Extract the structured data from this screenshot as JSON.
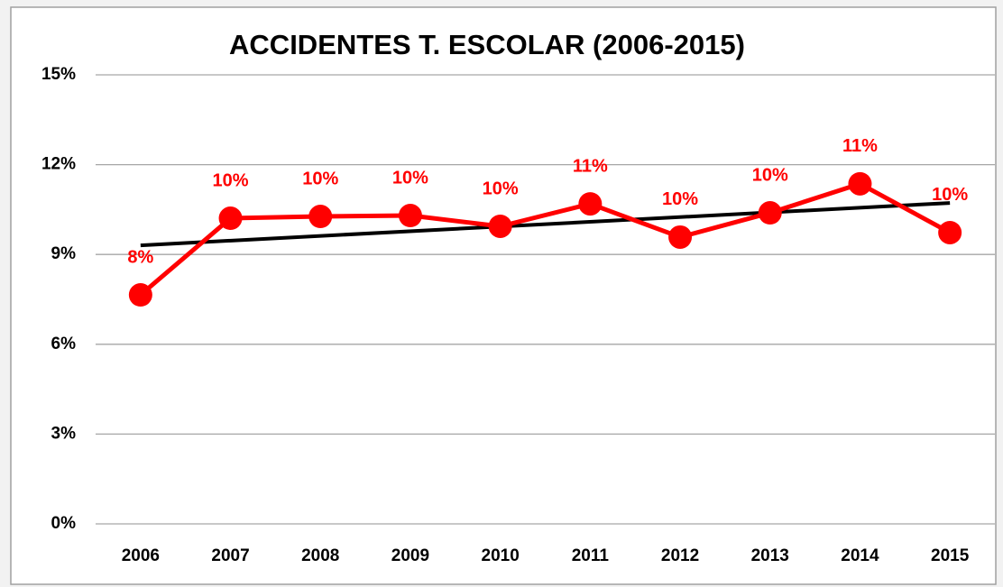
{
  "chart_data": {
    "type": "line",
    "title": "ACCIDENTES T. ESCOLAR (2006-2015)",
    "categories": [
      "2006",
      "2007",
      "2008",
      "2009",
      "2010",
      "2011",
      "2012",
      "2013",
      "2014",
      "2015"
    ],
    "values": [
      7.65,
      10.21,
      10.27,
      10.3,
      9.94,
      10.69,
      9.58,
      10.39,
      11.36,
      9.73
    ],
    "value_labels": [
      "8%",
      "10%",
      "10%",
      "10%",
      "10%",
      "11%",
      "10%",
      "10%",
      "11%",
      "10%"
    ],
    "color": "#ff0000",
    "trendline": "linear",
    "trendline_color": "#000000",
    "ylim": [
      0,
      15
    ],
    "yticks": [
      {
        "value": 0,
        "label": "0%"
      },
      {
        "value": 3,
        "label": "3%"
      },
      {
        "value": 6,
        "label": "6%"
      },
      {
        "value": 9,
        "label": "9%"
      },
      {
        "value": 12,
        "label": "12%"
      },
      {
        "value": 15,
        "label": "15%"
      }
    ],
    "grid": true
  }
}
